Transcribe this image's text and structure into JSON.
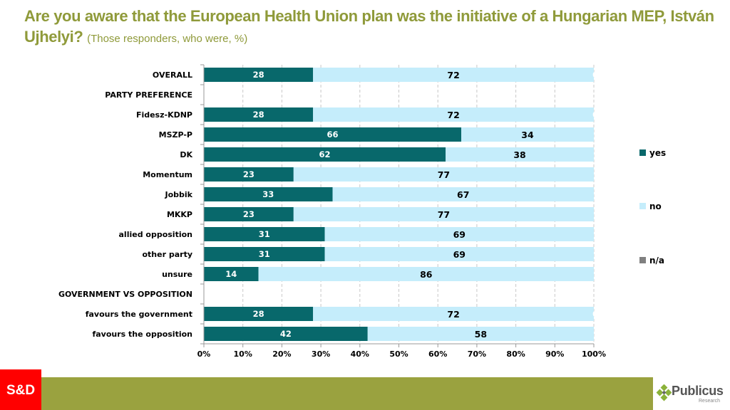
{
  "header": {
    "title": "Are you aware that the European Health Union plan was the initiative of a Hungarian MEP, István Ujhelyi?",
    "subtitle": "(Those responders, who were, %)"
  },
  "colors": {
    "yes": "#08686b",
    "no": "#c5edfb",
    "na": "#808080",
    "title": "#8f9a3a",
    "footer": "#9aa23f",
    "sd_red": "#ff0000"
  },
  "chart_data": {
    "type": "bar",
    "orientation": "horizontal",
    "stacked": true,
    "title": "Are you aware that the European Health Union plan was the initiative of a Hungarian MEP, István Ujhelyi?",
    "subtitle": "(Those responders, who were, %)",
    "xlabel": "",
    "ylabel": "",
    "xlim": [
      0,
      100
    ],
    "x_ticks": [
      "0%",
      "10%",
      "20%",
      "30%",
      "40%",
      "50%",
      "60%",
      "70%",
      "80%",
      "90%",
      "100%"
    ],
    "grid": "vertical dashed",
    "legend_position": "right",
    "categories": [
      "OVERALL",
      "PARTY PREFERENCE",
      "Fidesz-KDNP",
      "MSZP-P",
      "DK",
      "Momentum",
      "Jobbik",
      "MKKP",
      "allied opposition",
      "other party",
      "unsure",
      "GOVERNMENT VS OPPOSITION",
      "favours the government",
      "favours the opposition"
    ],
    "series": [
      {
        "name": "yes",
        "values": [
          28,
          null,
          28,
          66,
          62,
          23,
          33,
          23,
          31,
          31,
          14,
          null,
          28,
          42
        ]
      },
      {
        "name": "no",
        "values": [
          72,
          null,
          72,
          34,
          38,
          77,
          67,
          77,
          69,
          69,
          86,
          null,
          72,
          58
        ]
      },
      {
        "name": "n/a",
        "values": [
          0,
          null,
          0,
          0,
          0,
          0,
          0,
          0,
          0,
          0,
          0,
          null,
          0,
          0
        ]
      }
    ],
    "na_label_visible": [
      true,
      false,
      true,
      false,
      false,
      false,
      false,
      false,
      false,
      false,
      false,
      false,
      true,
      false
    ]
  },
  "footer": {
    "left_logo": "S&D",
    "right_logo_name": "Publicus",
    "right_logo_sub": "Research"
  }
}
